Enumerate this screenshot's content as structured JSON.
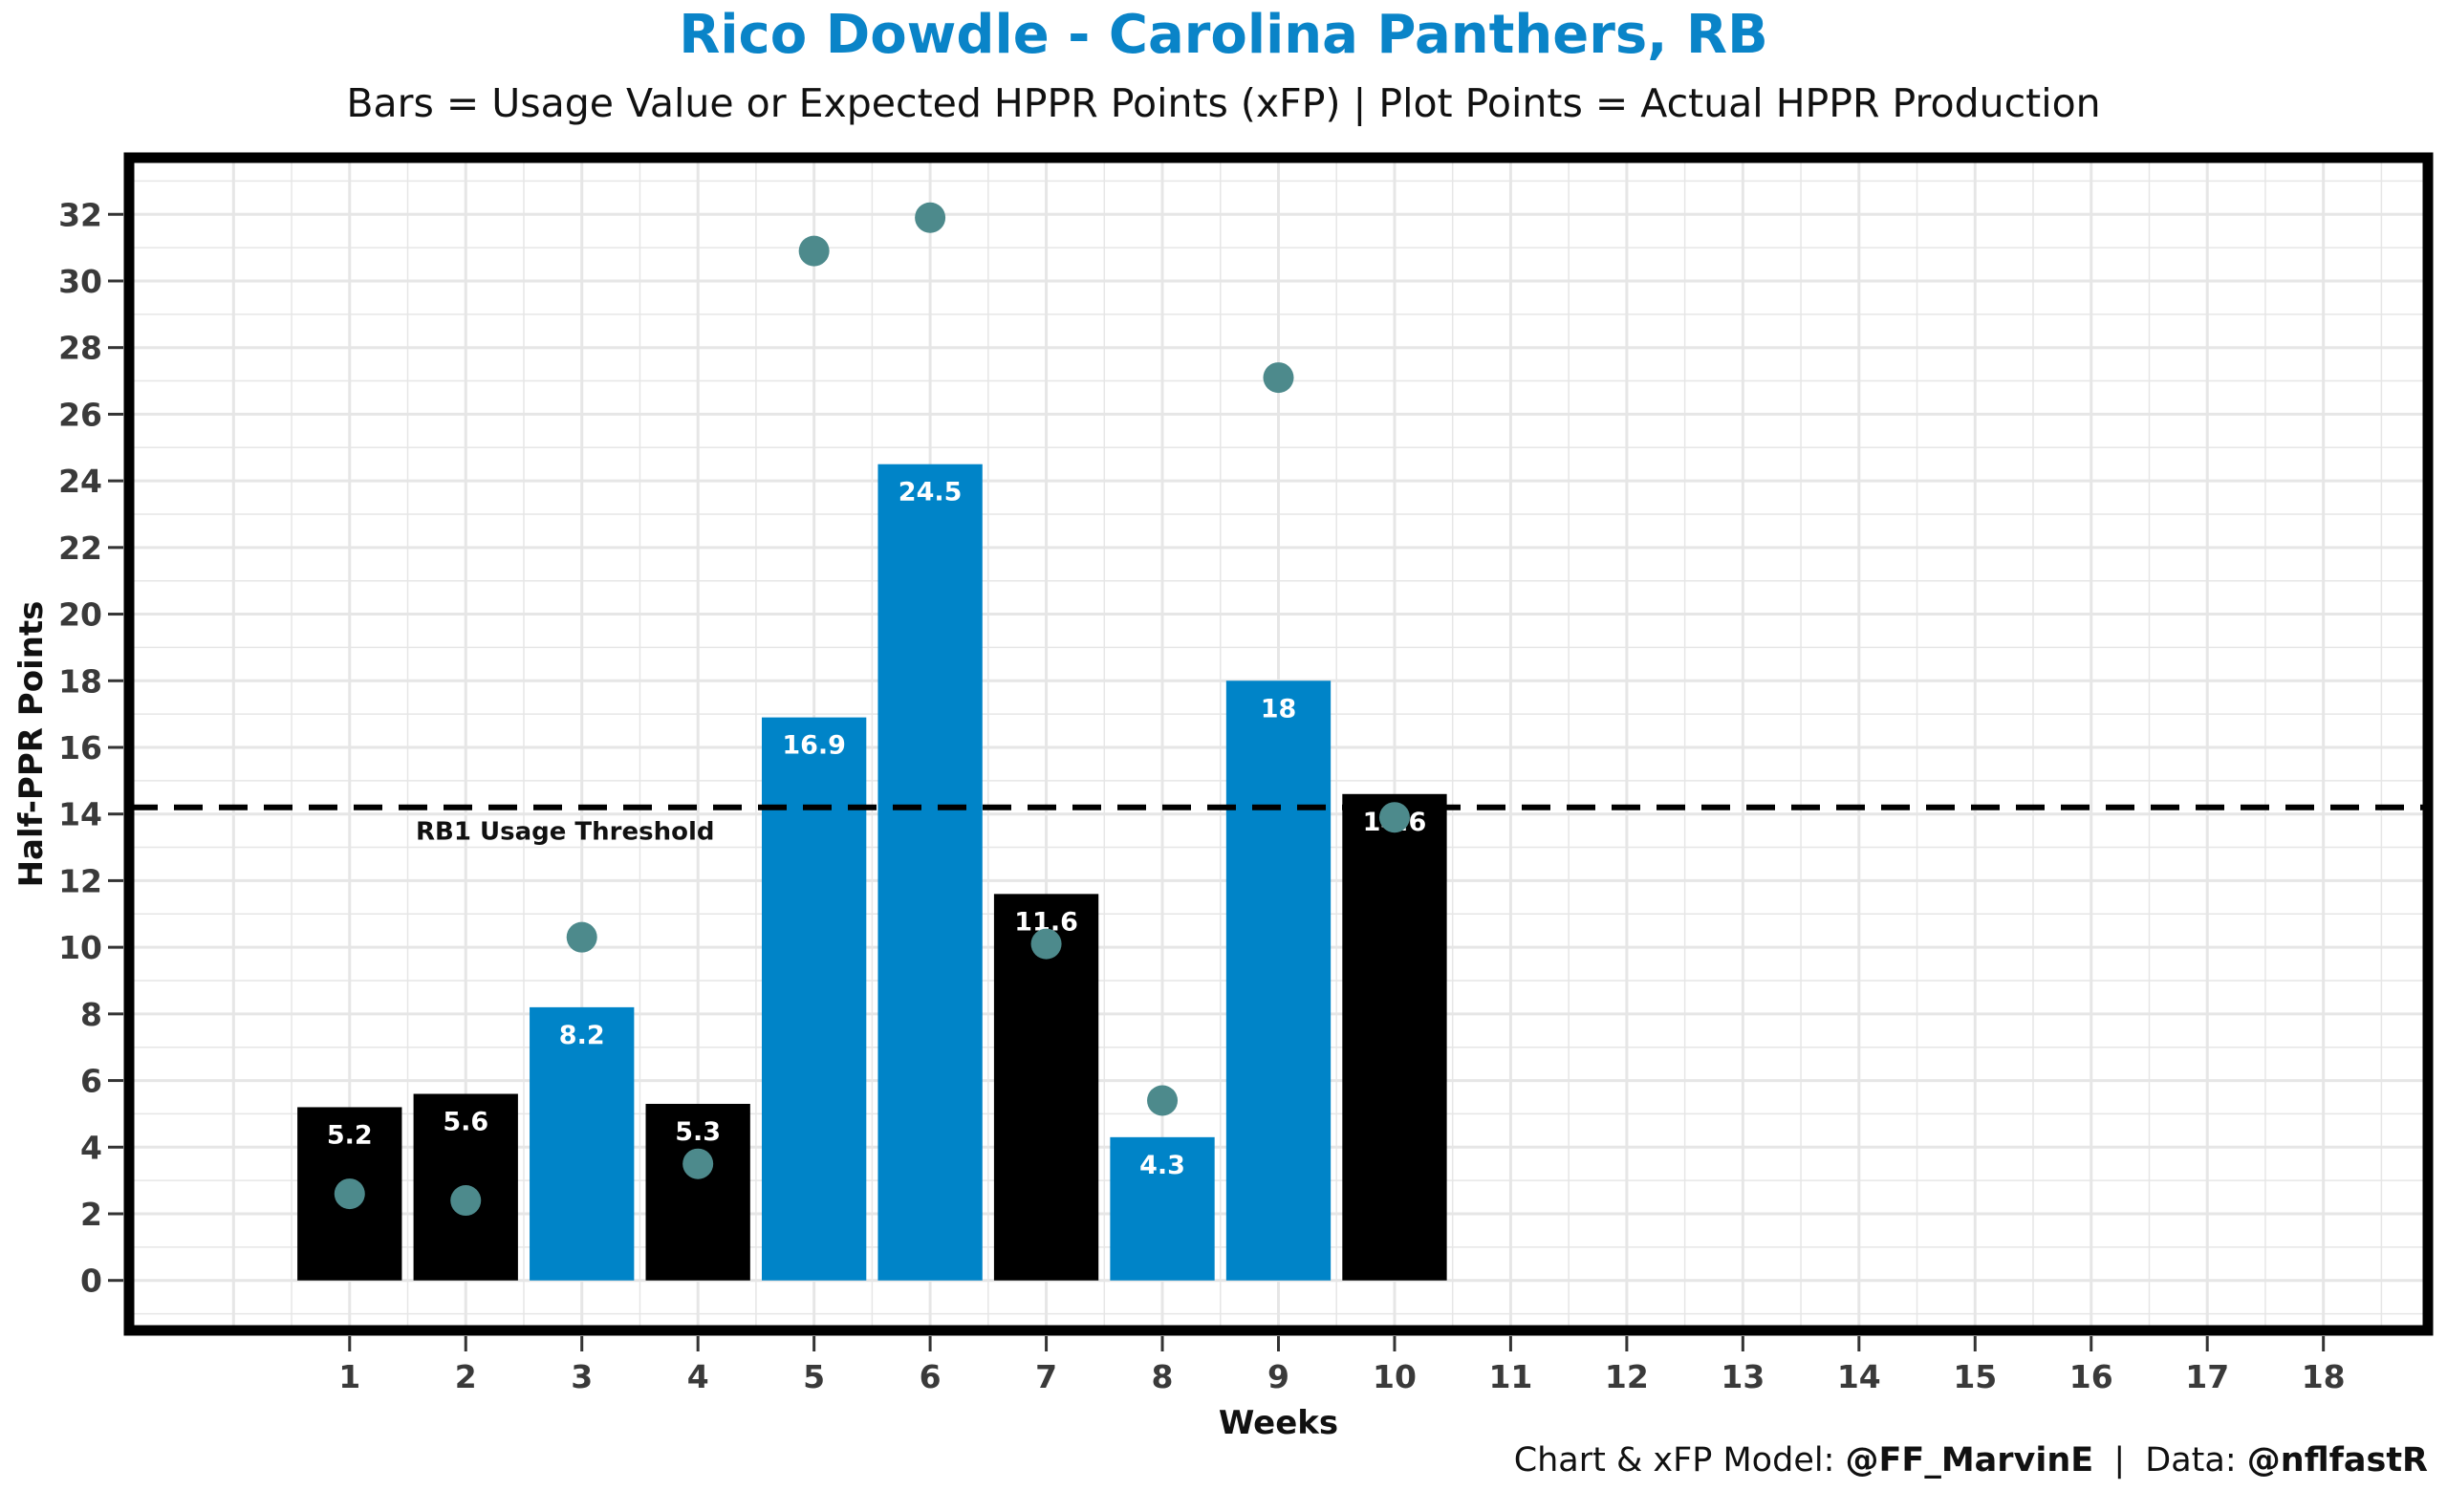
{
  "chart_data": {
    "type": "bar",
    "title": "Rico Dowdle - Carolina Panthers, RB",
    "subtitle": "Bars = Usage Value or Expected HPPR Points (xFP) | Plot Points = Actual HPPR Production",
    "xlabel": "Weeks",
    "ylabel": "Half-PPR Points",
    "x_ticks": [
      1,
      2,
      3,
      4,
      5,
      6,
      7,
      8,
      9,
      10,
      11,
      12,
      13,
      14,
      15,
      16,
      17,
      18
    ],
    "y_ticks": [
      0,
      2,
      4,
      6,
      8,
      10,
      12,
      14,
      16,
      18,
      20,
      22,
      24,
      26,
      28,
      30,
      32
    ],
    "xlim": [
      -0.9,
      18.9
    ],
    "ylim": [
      -1.5,
      33.7
    ],
    "grid": true,
    "series": [
      {
        "type": "bar",
        "x": [
          1,
          2,
          3,
          4,
          5,
          6,
          7,
          8,
          9,
          10
        ],
        "values": [
          5.2,
          5.6,
          8.2,
          5.3,
          16.9,
          24.5,
          11.6,
          4.3,
          18,
          14.6
        ],
        "labels": [
          "5.2",
          "5.6",
          "8.2",
          "5.3",
          "16.9",
          "24.5",
          "11.6",
          "4.3",
          "18",
          "14.6"
        ],
        "colors": [
          "#000000",
          "#000000",
          "#0084c8",
          "#000000",
          "#0084c8",
          "#0084c8",
          "#000000",
          "#0084c8",
          "#0084c8",
          "#000000"
        ]
      },
      {
        "type": "scatter",
        "x": [
          1,
          2,
          3,
          4,
          5,
          6,
          7,
          8,
          9,
          10
        ],
        "values": [
          2.6,
          2.4,
          10.3,
          3.5,
          30.9,
          31.9,
          10.1,
          5.4,
          27.1,
          13.9
        ],
        "color": "#4d8a8c"
      }
    ],
    "reference_line": {
      "y": 14.2,
      "style": "dashed",
      "label": "RB1 Usage Threshold",
      "color": "#000000"
    }
  },
  "credit": {
    "model_prefix": "Chart & xFP Model:",
    "model_handle": "@FF_MarvinE",
    "separator": "|",
    "data_prefix": "Data:",
    "data_handle": "@nflfastR"
  },
  "colors": {
    "title": "#0a84c8",
    "bar_blue": "#0084c8",
    "bar_black": "#000000",
    "points": "#4d8a8c",
    "grid": "#e6e6e6"
  }
}
